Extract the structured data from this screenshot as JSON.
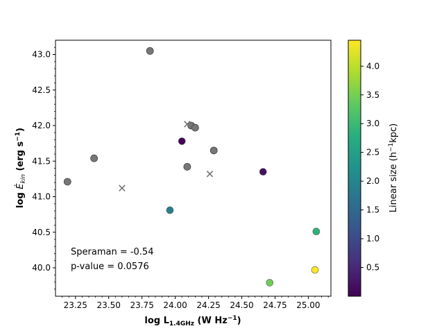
{
  "chart_data": {
    "type": "scatter",
    "xlabel": "log L",
    "xlabel_sub": "1.4GHz",
    "xlabel_units": " (W Hz",
    "xlabel_exp": "−1",
    "xlabel_close": ")",
    "ylabel": "log ",
    "ylabel_sym": "Ė",
    "ylabel_sub": "kin",
    "ylabel_units": " (erg s",
    "ylabel_exp": "−1",
    "ylabel_close": ")",
    "xlim": [
      23.1,
      25.17
    ],
    "ylim": [
      39.6,
      43.2
    ],
    "xticks": [
      23.25,
      23.5,
      23.75,
      24.0,
      24.25,
      24.5,
      24.75,
      25.0
    ],
    "xtick_labels": [
      "23.25",
      "23.50",
      "23.75",
      "24.00",
      "24.25",
      "24.50",
      "24.75",
      "25.00"
    ],
    "yticks": [
      40.0,
      40.5,
      41.0,
      41.5,
      42.0,
      42.5,
      43.0
    ],
    "ytick_labels": [
      "40.0",
      "40.5",
      "41.0",
      "41.5",
      "42.0",
      "42.5",
      "43.0"
    ],
    "grey_color": "#777777",
    "gray_points": [
      {
        "x": 23.19,
        "y": 41.21
      },
      {
        "x": 23.39,
        "y": 41.54
      },
      {
        "x": 23.81,
        "y": 43.05
      },
      {
        "x": 24.09,
        "y": 41.42
      },
      {
        "x": 24.12,
        "y": 42.0
      },
      {
        "x": 24.15,
        "y": 41.97
      },
      {
        "x": 24.29,
        "y": 41.65
      }
    ],
    "upper_limits": [
      {
        "x": 23.6,
        "y": 41.12
      },
      {
        "x": 24.09,
        "y": 42.02
      },
      {
        "x": 24.26,
        "y": 41.32
      }
    ],
    "colored_points": [
      {
        "x": 24.05,
        "y": 41.78,
        "size": 0.05
      },
      {
        "x": 24.66,
        "y": 41.35,
        "size": 0.2
      },
      {
        "x": 23.96,
        "y": 40.81,
        "size": 1.9
      },
      {
        "x": 25.06,
        "y": 40.51,
        "size": 2.85
      },
      {
        "x": 24.71,
        "y": 39.79,
        "size": 3.45
      },
      {
        "x": 25.05,
        "y": 39.97,
        "size": 4.45
      }
    ],
    "colorbar": {
      "label": "Linear size (h",
      "label_exp": "−1",
      "label_end": "kpc)",
      "vmin": 0.0,
      "vmax": 4.45,
      "ticks": [
        0.5,
        1.0,
        1.5,
        2.0,
        2.5,
        3.0,
        3.5,
        4.0
      ],
      "tick_labels": [
        "0.5",
        "1.0",
        "1.5",
        "2.0",
        "2.5",
        "3.0",
        "3.5",
        "4.0"
      ],
      "colormap": "viridis"
    },
    "annotations": [
      "Speraman = -0.54",
      "p-value = 0.0576"
    ]
  }
}
